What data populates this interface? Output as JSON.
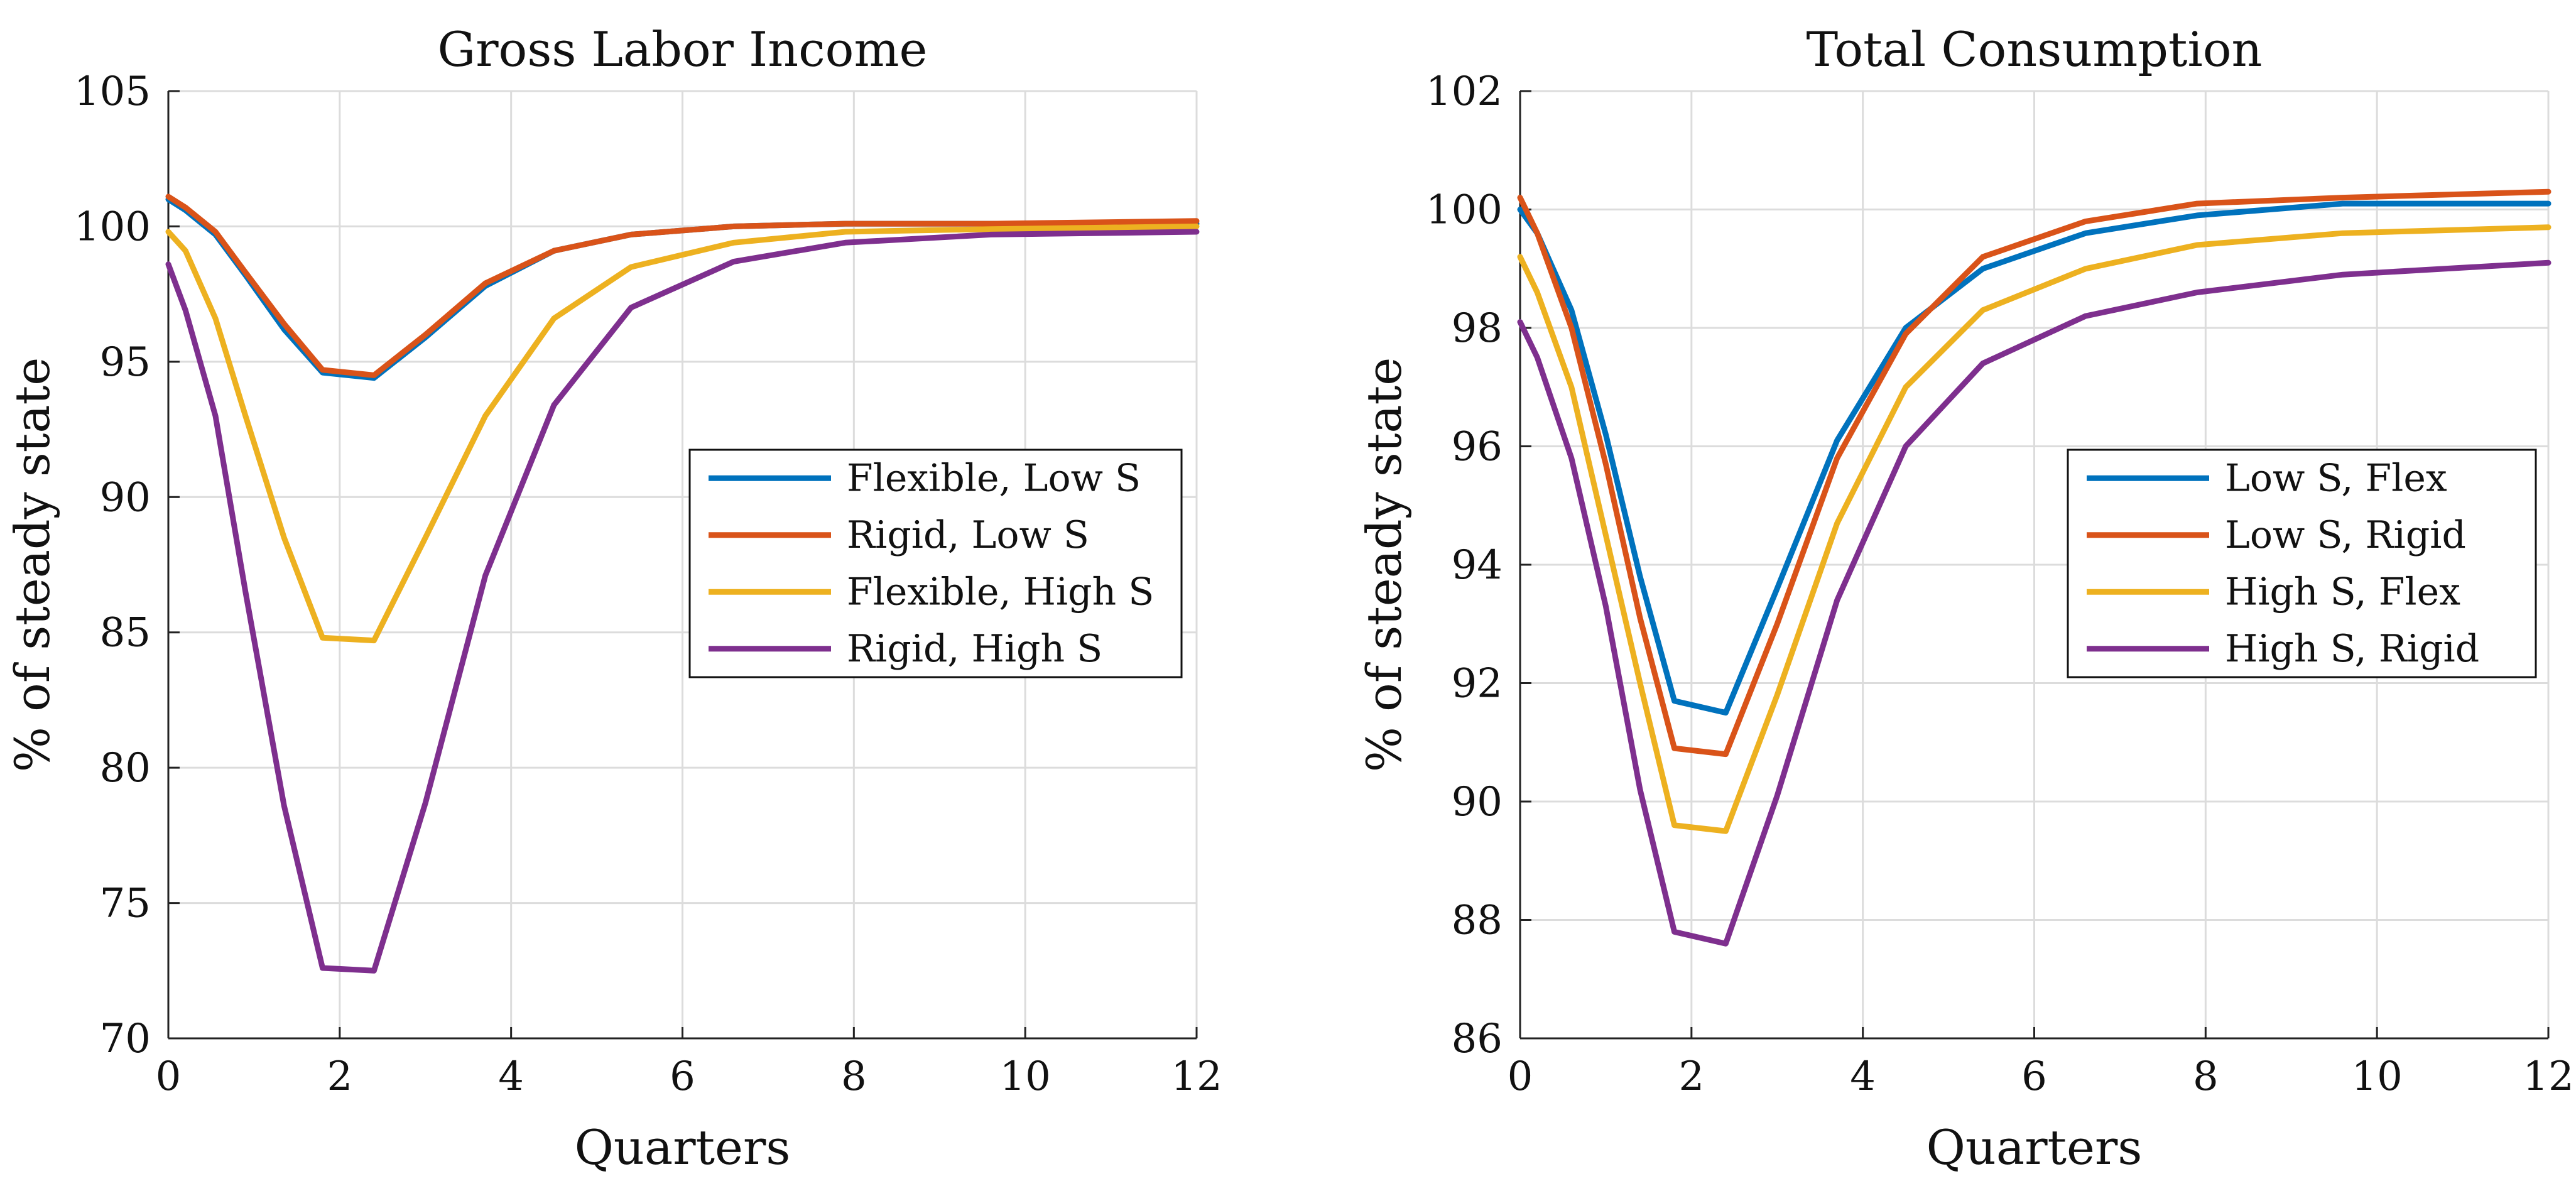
{
  "chart_data": [
    {
      "type": "line",
      "title": "Gross Labor Income",
      "xlabel": "Quarters",
      "ylabel": "% of steady state",
      "xlim": [
        0,
        12
      ],
      "ylim": [
        70,
        105
      ],
      "xticks": [
        0,
        2,
        4,
        6,
        8,
        10,
        12
      ],
      "yticks": [
        70,
        75,
        80,
        85,
        90,
        95,
        100,
        105
      ],
      "grid": true,
      "legend_position": "right",
      "series": [
        {
          "name": "Flexible, Low S",
          "color": "#0072BD",
          "x": [
            0,
            0.2,
            0.55,
            0.9,
            1.35,
            1.8,
            2.4,
            3.0,
            3.7,
            4.5,
            5.4,
            6.6,
            7.9,
            9.6,
            12
          ],
          "y": [
            101.0,
            100.6,
            99.7,
            98.2,
            96.2,
            94.6,
            94.4,
            95.9,
            97.8,
            99.1,
            99.7,
            100.0,
            100.1,
            100.1,
            100.1
          ]
        },
        {
          "name": "Rigid, Low S",
          "color": "#D95319",
          "x": [
            0,
            0.2,
            0.55,
            0.9,
            1.35,
            1.8,
            2.4,
            3.0,
            3.7,
            4.5,
            5.4,
            6.6,
            7.9,
            9.6,
            12
          ],
          "y": [
            101.1,
            100.7,
            99.8,
            98.3,
            96.4,
            94.7,
            94.5,
            96.0,
            97.9,
            99.1,
            99.7,
            100.0,
            100.1,
            100.1,
            100.2
          ]
        },
        {
          "name": "Flexible, High S",
          "color": "#EDB120",
          "x": [
            0,
            0.2,
            0.55,
            0.9,
            1.35,
            1.8,
            2.4,
            3.0,
            3.7,
            4.5,
            5.4,
            6.6,
            7.9,
            9.6,
            12
          ],
          "y": [
            99.8,
            99.1,
            96.6,
            93.0,
            88.5,
            84.8,
            84.7,
            88.5,
            93.0,
            96.6,
            98.5,
            99.4,
            99.8,
            99.9,
            100.0
          ]
        },
        {
          "name": "Rigid, High S",
          "color": "#7E2F8E",
          "x": [
            0,
            0.2,
            0.55,
            0.9,
            1.35,
            1.8,
            2.4,
            3.0,
            3.7,
            4.5,
            5.4,
            6.6,
            7.9,
            9.6,
            12
          ],
          "y": [
            98.6,
            96.9,
            93.0,
            86.5,
            78.6,
            72.6,
            72.5,
            78.7,
            87.1,
            93.4,
            97.0,
            98.7,
            99.4,
            99.7,
            99.8
          ]
        }
      ]
    },
    {
      "type": "line",
      "title": "Total Consumption",
      "xlabel": "Quarters",
      "ylabel": "% of steady state",
      "xlim": [
        0,
        12
      ],
      "ylim": [
        86,
        102
      ],
      "xticks": [
        0,
        2,
        4,
        6,
        8,
        10,
        12
      ],
      "yticks": [
        86,
        88,
        90,
        92,
        94,
        96,
        98,
        100,
        102
      ],
      "grid": true,
      "legend_position": "right",
      "series": [
        {
          "name": "Low S, Flex",
          "color": "#0072BD",
          "x": [
            0,
            0.2,
            0.6,
            1.0,
            1.4,
            1.8,
            2.4,
            3.0,
            3.7,
            4.5,
            5.4,
            6.6,
            7.9,
            9.6,
            12
          ],
          "y": [
            100.0,
            99.6,
            98.3,
            96.2,
            93.8,
            91.7,
            91.5,
            93.6,
            96.1,
            98.0,
            99.0,
            99.6,
            99.9,
            100.1,
            100.1
          ]
        },
        {
          "name": "Low S, Rigid",
          "color": "#D95319",
          "x": [
            0,
            0.2,
            0.6,
            1.0,
            1.4,
            1.8,
            2.4,
            3.0,
            3.7,
            4.5,
            5.4,
            6.6,
            7.9,
            9.6,
            12
          ],
          "y": [
            100.2,
            99.6,
            98.0,
            95.7,
            93.1,
            90.9,
            90.8,
            93.0,
            95.8,
            97.9,
            99.2,
            99.8,
            100.1,
            100.2,
            100.3
          ]
        },
        {
          "name": "High S, Flex",
          "color": "#EDB120",
          "x": [
            0,
            0.2,
            0.6,
            1.0,
            1.4,
            1.8,
            2.4,
            3.0,
            3.7,
            4.5,
            5.4,
            6.6,
            7.9,
            9.6,
            12
          ],
          "y": [
            99.2,
            98.6,
            97.0,
            94.5,
            92.0,
            89.6,
            89.5,
            91.8,
            94.7,
            97.0,
            98.3,
            99.0,
            99.4,
            99.6,
            99.7
          ]
        },
        {
          "name": "High S, Rigid",
          "color": "#7E2F8E",
          "x": [
            0,
            0.2,
            0.6,
            1.0,
            1.4,
            1.8,
            2.4,
            3.0,
            3.7,
            4.5,
            5.4,
            6.6,
            7.9,
            9.6,
            12
          ],
          "y": [
            98.1,
            97.5,
            95.8,
            93.3,
            90.2,
            87.8,
            87.6,
            90.1,
            93.4,
            96.0,
            97.4,
            98.2,
            98.6,
            98.9,
            99.1
          ]
        }
      ]
    }
  ]
}
